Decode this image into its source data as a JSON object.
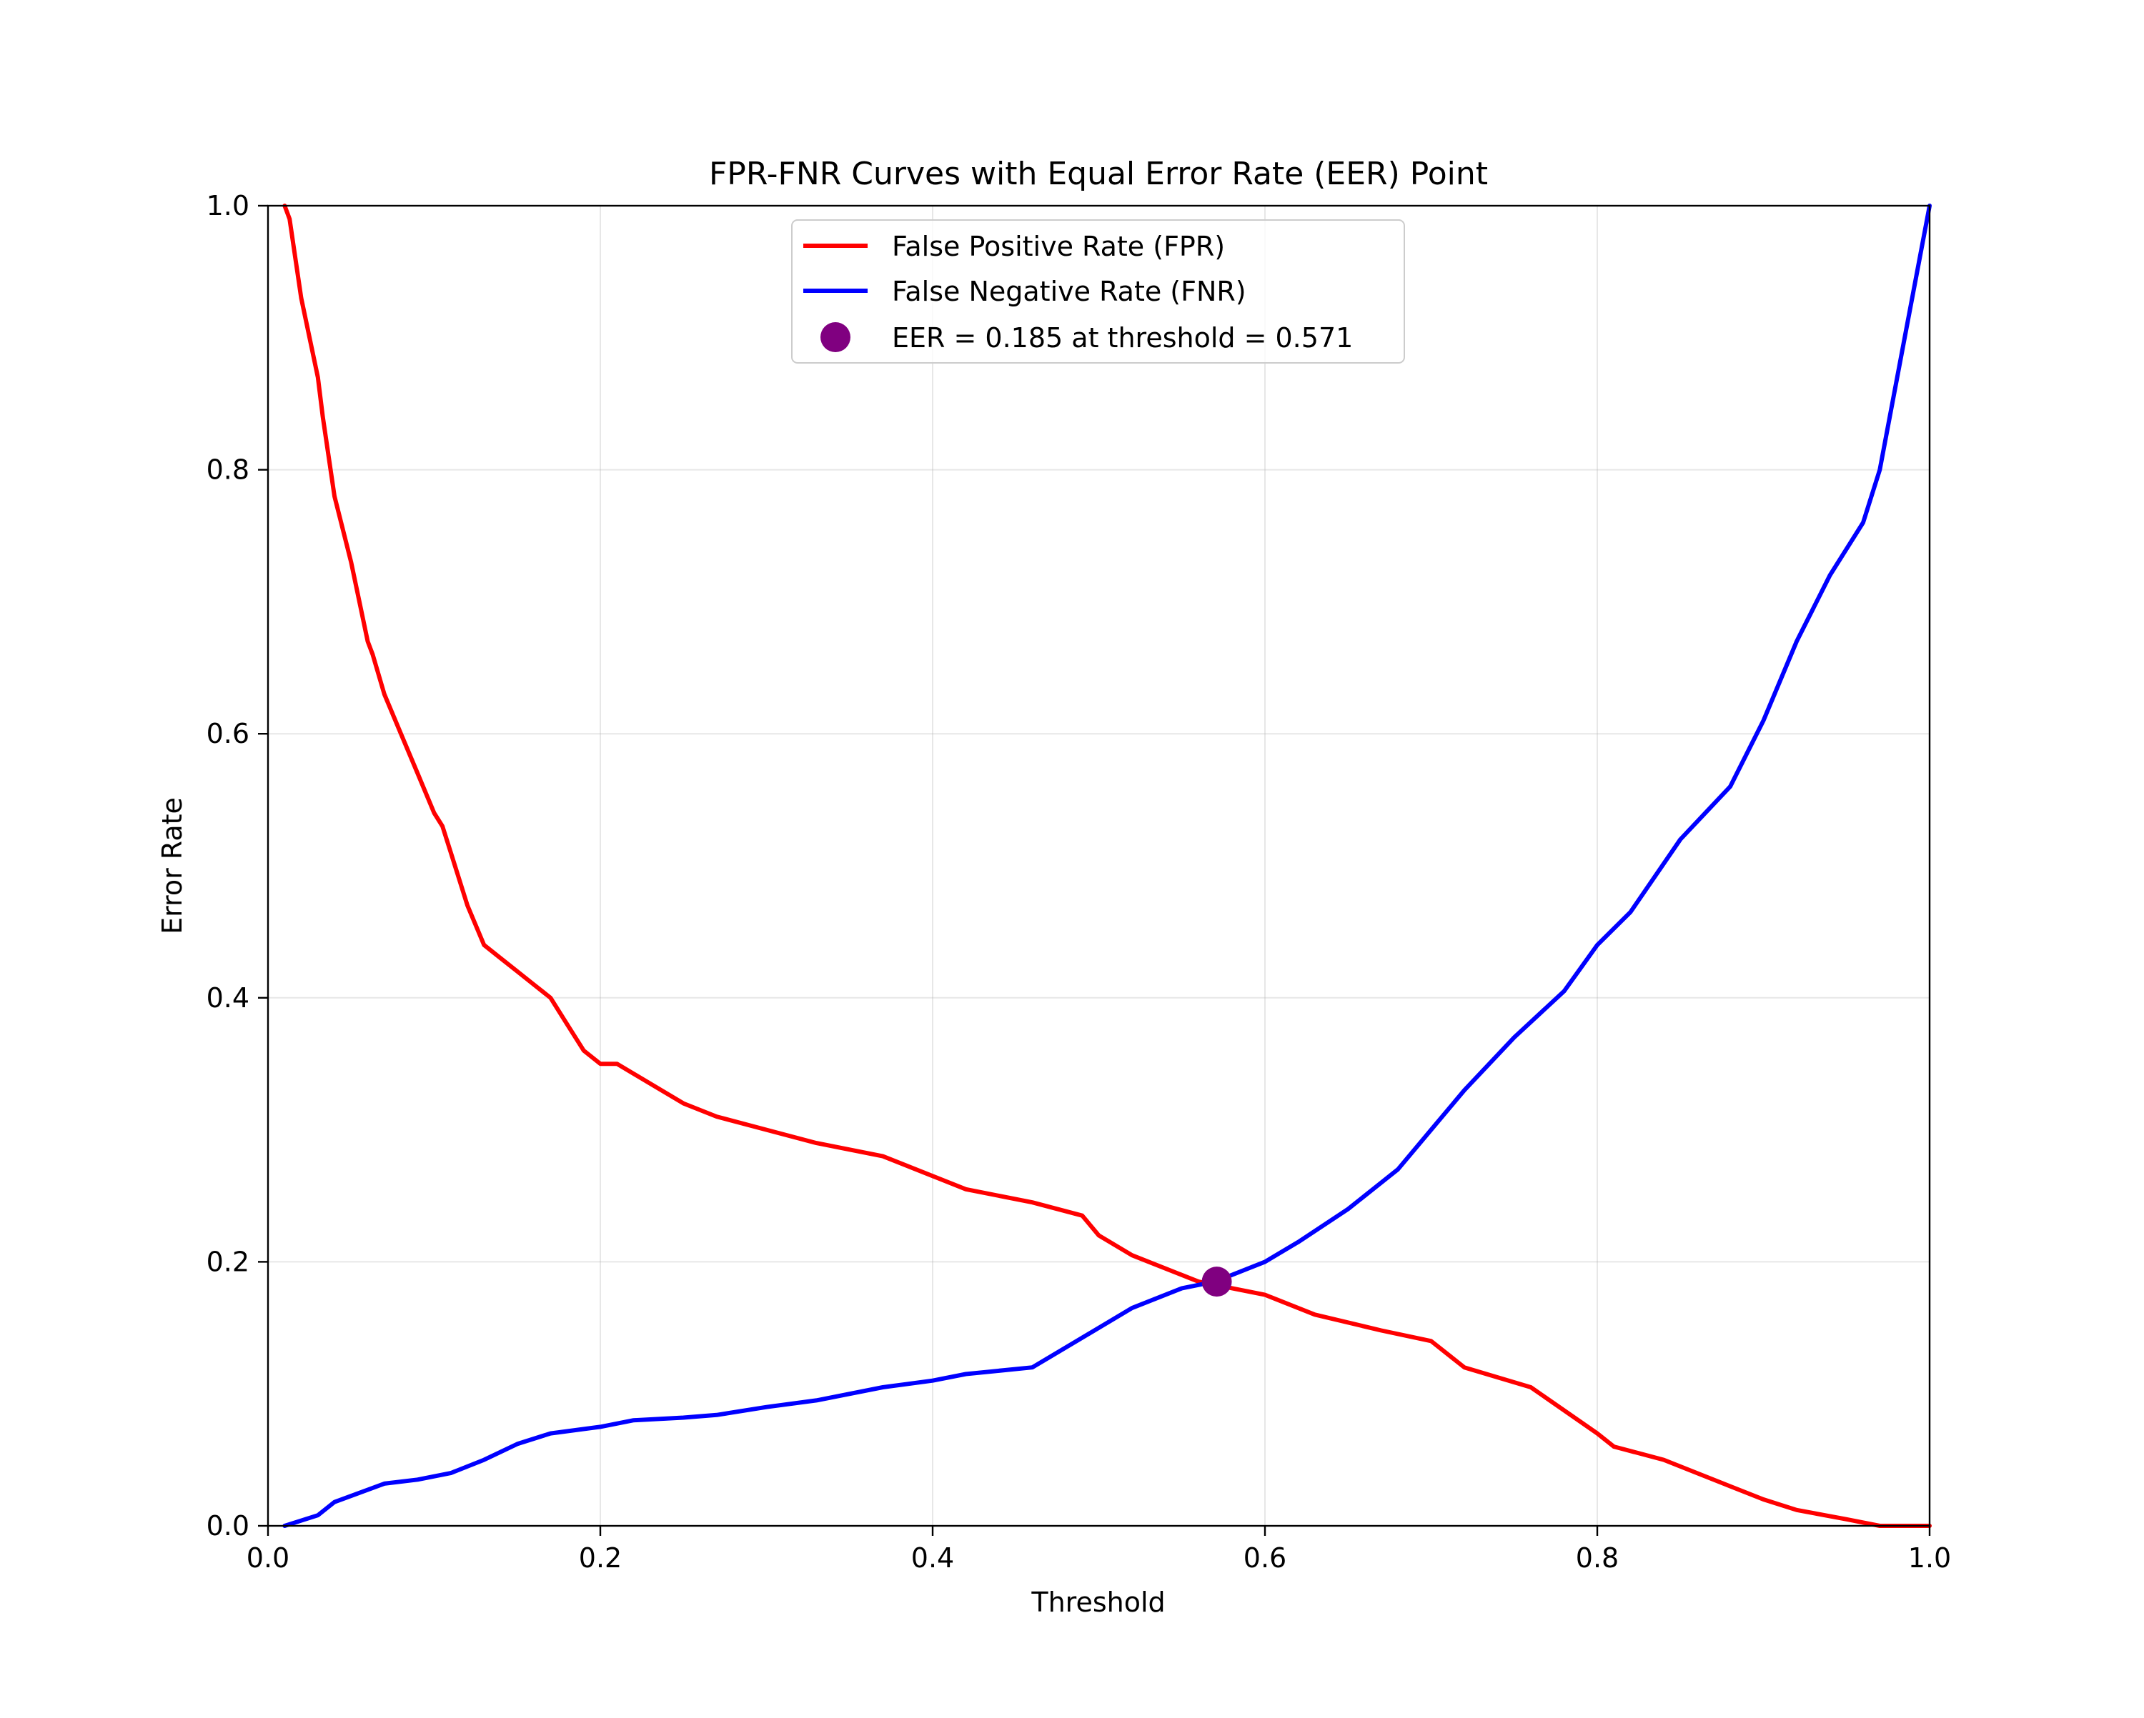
{
  "chart_data": {
    "type": "line",
    "title": "FPR-FNR Curves with Equal Error Rate (EER) Point",
    "xlabel": "Threshold",
    "ylabel": "Error Rate",
    "xlim": [
      0.0,
      1.0
    ],
    "ylim": [
      0.0,
      1.0
    ],
    "xticks": [
      "0.0",
      "0.2",
      "0.4",
      "0.6",
      "0.8",
      "1.0"
    ],
    "yticks": [
      "0.0",
      "0.2",
      "0.4",
      "0.6",
      "0.8",
      "1.0"
    ],
    "grid": true,
    "legend_position": "upper center",
    "series": [
      {
        "name": "False Positive Rate (FPR)",
        "color": "#ff0000",
        "x": [
          0.01,
          0.013,
          0.02,
          0.03,
          0.033,
          0.04,
          0.05,
          0.06,
          0.063,
          0.07,
          0.08,
          0.09,
          0.1,
          0.105,
          0.11,
          0.12,
          0.13,
          0.14,
          0.15,
          0.16,
          0.17,
          0.18,
          0.19,
          0.2,
          0.21,
          0.25,
          0.27,
          0.3,
          0.33,
          0.37,
          0.4,
          0.42,
          0.46,
          0.49,
          0.5,
          0.52,
          0.56,
          0.6,
          0.63,
          0.67,
          0.7,
          0.72,
          0.76,
          0.8,
          0.81,
          0.84,
          0.86,
          0.88,
          0.9,
          0.92,
          0.95,
          0.97,
          1.0
        ],
        "y": [
          1.0,
          0.99,
          0.93,
          0.87,
          0.84,
          0.78,
          0.73,
          0.67,
          0.66,
          0.63,
          0.6,
          0.57,
          0.54,
          0.53,
          0.51,
          0.47,
          0.44,
          0.43,
          0.42,
          0.41,
          0.4,
          0.38,
          0.36,
          0.35,
          0.35,
          0.32,
          0.31,
          0.3,
          0.29,
          0.28,
          0.265,
          0.255,
          0.245,
          0.235,
          0.22,
          0.205,
          0.185,
          0.175,
          0.16,
          0.148,
          0.14,
          0.12,
          0.105,
          0.07,
          0.06,
          0.05,
          0.04,
          0.03,
          0.02,
          0.012,
          0.005,
          0.0,
          0.0
        ]
      },
      {
        "name": "False Negative Rate (FNR)",
        "color": "#0000ff",
        "x": [
          0.01,
          0.03,
          0.04,
          0.055,
          0.07,
          0.09,
          0.11,
          0.13,
          0.15,
          0.17,
          0.2,
          0.22,
          0.25,
          0.27,
          0.3,
          0.33,
          0.37,
          0.4,
          0.42,
          0.46,
          0.5,
          0.52,
          0.55,
          0.57,
          0.6,
          0.62,
          0.65,
          0.68,
          0.7,
          0.72,
          0.75,
          0.78,
          0.8,
          0.82,
          0.85,
          0.88,
          0.9,
          0.92,
          0.94,
          0.96,
          0.97,
          0.985,
          1.0
        ],
        "y": [
          0.0,
          0.008,
          0.018,
          0.025,
          0.032,
          0.035,
          0.04,
          0.05,
          0.062,
          0.07,
          0.075,
          0.08,
          0.082,
          0.084,
          0.09,
          0.095,
          0.105,
          0.11,
          0.115,
          0.12,
          0.15,
          0.165,
          0.18,
          0.185,
          0.2,
          0.215,
          0.24,
          0.27,
          0.3,
          0.33,
          0.37,
          0.405,
          0.44,
          0.465,
          0.52,
          0.56,
          0.61,
          0.67,
          0.72,
          0.76,
          0.8,
          0.9,
          1.0
        ]
      }
    ],
    "points": [
      {
        "name": "EER = 0.185 at threshold = 0.571",
        "color": "#800080",
        "x": 0.571,
        "y": 0.185
      }
    ]
  }
}
